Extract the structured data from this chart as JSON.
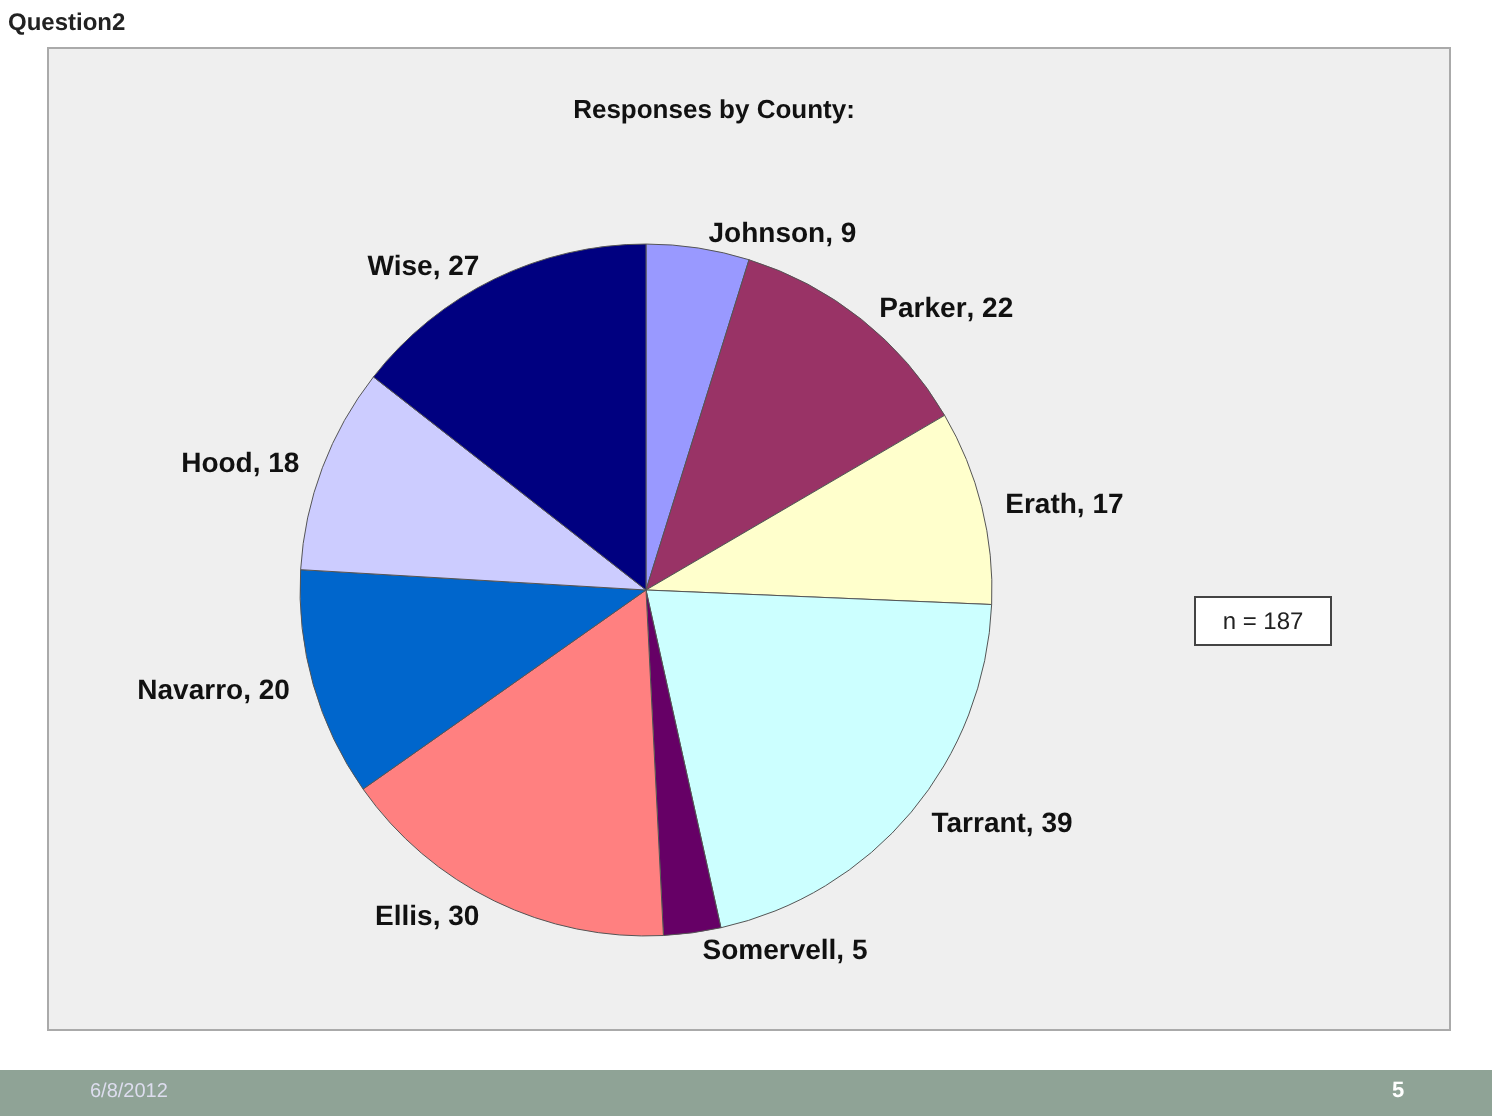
{
  "chart_data": {
    "type": "pie",
    "title": "Responses by County:",
    "categories": [
      "Johnson",
      "Parker",
      "Erath",
      "Tarrant",
      "Somervell",
      "Ellis",
      "Navarro",
      "Hood",
      "Wise"
    ],
    "values": [
      9,
      22,
      17,
      39,
      5,
      30,
      20,
      18,
      27
    ],
    "colors": [
      "#9999ff",
      "#993366",
      "#ffffcc",
      "#ccffff",
      "#660066",
      "#ff8080",
      "#0066cc",
      "#ccccff",
      "#000080"
    ],
    "value_labels": [
      ", 9",
      ", 22",
      ", 17",
      ", 39",
      ", 5",
      ", 30",
      ", 20",
      ", 18",
      ", 27"
    ],
    "legend": false,
    "annotations": [
      "Question2",
      "n = 187",
      "6/8/2012",
      "5"
    ]
  }
}
